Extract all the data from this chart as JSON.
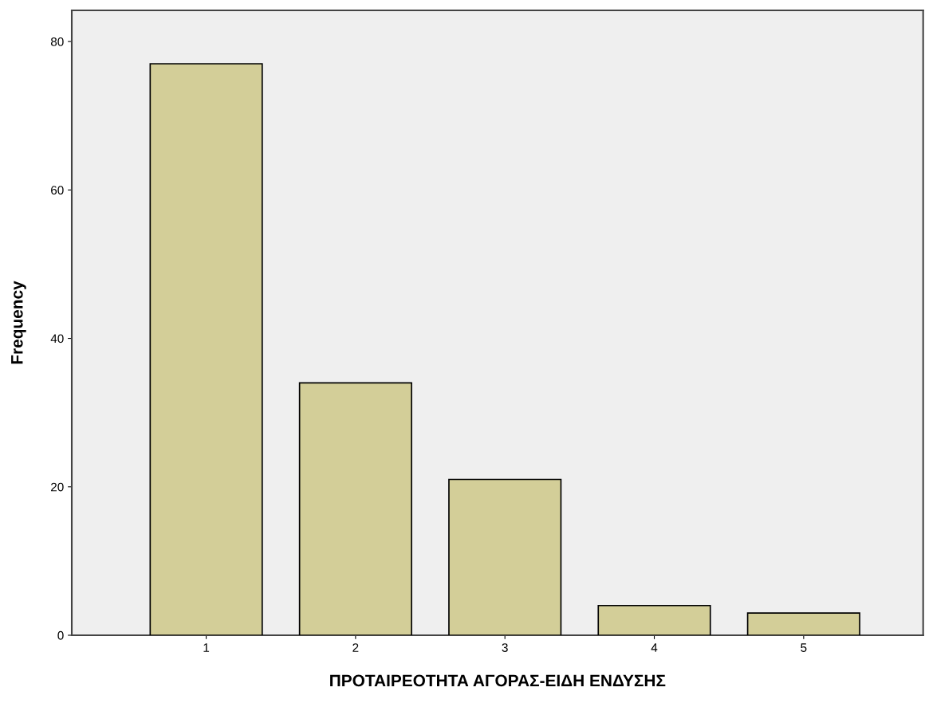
{
  "chart_data": {
    "type": "bar",
    "xlabel": "ΠΡΟΤΑΙΡΕΟΤΗΤΑ ΑΓΟΡΑΣ-ΕΙΔΗ ΕΝΔΥΣΗΣ",
    "ylabel": "Frequency",
    "categories": [
      "1",
      "2",
      "3",
      "4",
      "5"
    ],
    "values": [
      77,
      34,
      21,
      4,
      3
    ],
    "color": "#d3ce98",
    "ylim": [
      0,
      84.2
    ],
    "yticks": [
      0,
      20,
      40,
      60,
      80
    ],
    "grid": false
  }
}
